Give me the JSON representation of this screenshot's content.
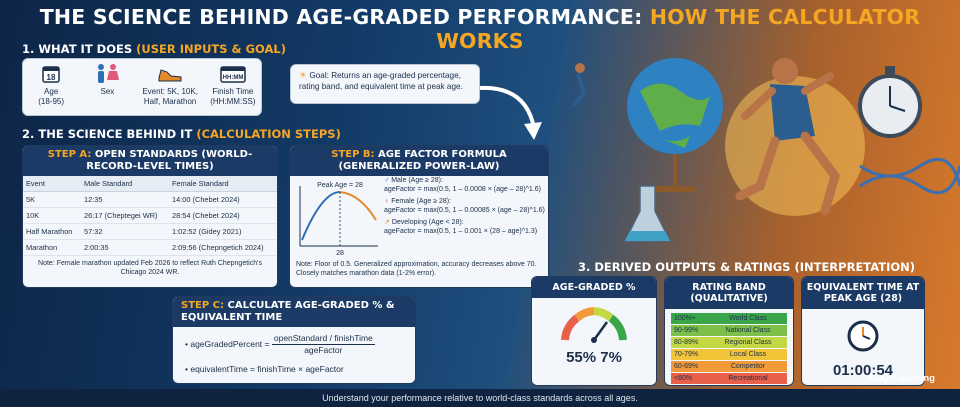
{
  "title": {
    "part1": "THE SCIENCE BEHIND AGE-GRADED PERFORMANCE:",
    "part2": "HOW THE CALCULATOR WORKS"
  },
  "section1": {
    "heading": "1. WHAT IT DOES",
    "heading_hl": "(USER INPUTS & GOAL)",
    "inputs": [
      {
        "icon": "calendar-icon",
        "glyph": "18",
        "label": "Age\n(18-95)"
      },
      {
        "icon": "male-female-icon",
        "label": "Sex"
      },
      {
        "icon": "running-shoe-icon",
        "label": "Event: 5K, 10K,\nHalf, Marathon"
      },
      {
        "icon": "timer-icon",
        "glyph": "HH:MM",
        "label": "Finish Time\n(HH:MM:SS)"
      }
    ],
    "goal": "Goal: Returns an age-graded percentage, rating band, and equivalent time at peak age."
  },
  "section2": {
    "heading": "2. THE SCIENCE BEHIND IT",
    "heading_hl": "(CALCULATION STEPS)",
    "stepA": {
      "title_hl": "STEP A:",
      "title": "OPEN STANDARDS (WORLD-RECORD-LEVEL TIMES)",
      "columns": [
        "Event",
        "Male Standard",
        "Female Standard"
      ],
      "rows": [
        [
          "5K",
          "12:35",
          "14:00 (Chebet 2024)"
        ],
        [
          "10K",
          "26:17 (Cheptegei WR)",
          "28:54 (Chebet 2024)"
        ],
        [
          "Half Marathon",
          "57:32",
          "1:02:52 (Gidey 2021)"
        ],
        [
          "Marathon",
          "2:00:35",
          "2:09:56 (Chepngetich 2024)"
        ]
      ],
      "note": "Note: Female marathon updated Feb 2026 to reflect Ruth Chepngetich's Chicago 2024 WR."
    },
    "stepB": {
      "title_hl": "STEP B:",
      "title": "AGE FACTOR FORMULA (GENERALIZED POWER-LAW)",
      "peak_label": "Peak Age = 28",
      "axis_tick": "28",
      "male_label": "Male (Age ≥ 28):",
      "male_formula": "ageFactor = max(0.5, 1 – 0.0008 × (age – 28)^1.6)",
      "female_label": "Female (Age ≥ 28):",
      "female_formula": "ageFactor = max(0.5, 1 – 0.00085 × (age – 28)^1.6)",
      "dev_label": "Developing (Age < 28):",
      "dev_formula": "ageFactor = max(0.5, 1 – 0.001 × (28 – age)^1.3)",
      "note": "Note: Floor of 0.5. Generalized approximation, accuracy decreases above 70. Closely matches marathon data (1-2% error)."
    },
    "stepC": {
      "title_hl": "STEP C:",
      "title": "CALCULATE AGE-GRADED % & EQUIVALENT TIME",
      "f1_lhs": "ageGradedPercent =",
      "f1_num": "openStandard / finishTime",
      "f1_den": "ageFactor",
      "f2": "equivalentTime = finishTime × ageFactor"
    }
  },
  "section3": {
    "heading": "3. DERIVED OUTPUTS & RATINGS (INTERPRETATION)",
    "card1": {
      "title": "AGE-GRADED %",
      "value": "55% 7%"
    },
    "card2": {
      "title": "RATING BAND (QUALITATIVE)",
      "bands": [
        {
          "pct": "100%+",
          "label": "World Class",
          "color": "#3aa64a"
        },
        {
          "pct": "90-99%",
          "label": "National Class",
          "color": "#7cc04a"
        },
        {
          "pct": "80-89%",
          "label": "Regional Class",
          "color": "#c4d843"
        },
        {
          "pct": "70-79%",
          "label": "Local Class",
          "color": "#f2c437"
        },
        {
          "pct": "60-69%",
          "label": "Competitor",
          "color": "#f29a3a"
        },
        {
          "pct": "<60%",
          "label": "Recreational",
          "color": "#e9604a"
        }
      ]
    },
    "card3": {
      "title": "EQUIVALENT TIME AT PEAK AGE (28)",
      "value": "01:00:54"
    }
  },
  "brand": "ESQ.Coaching",
  "footer": "Understand your performance relative to world-class standards across all ages."
}
